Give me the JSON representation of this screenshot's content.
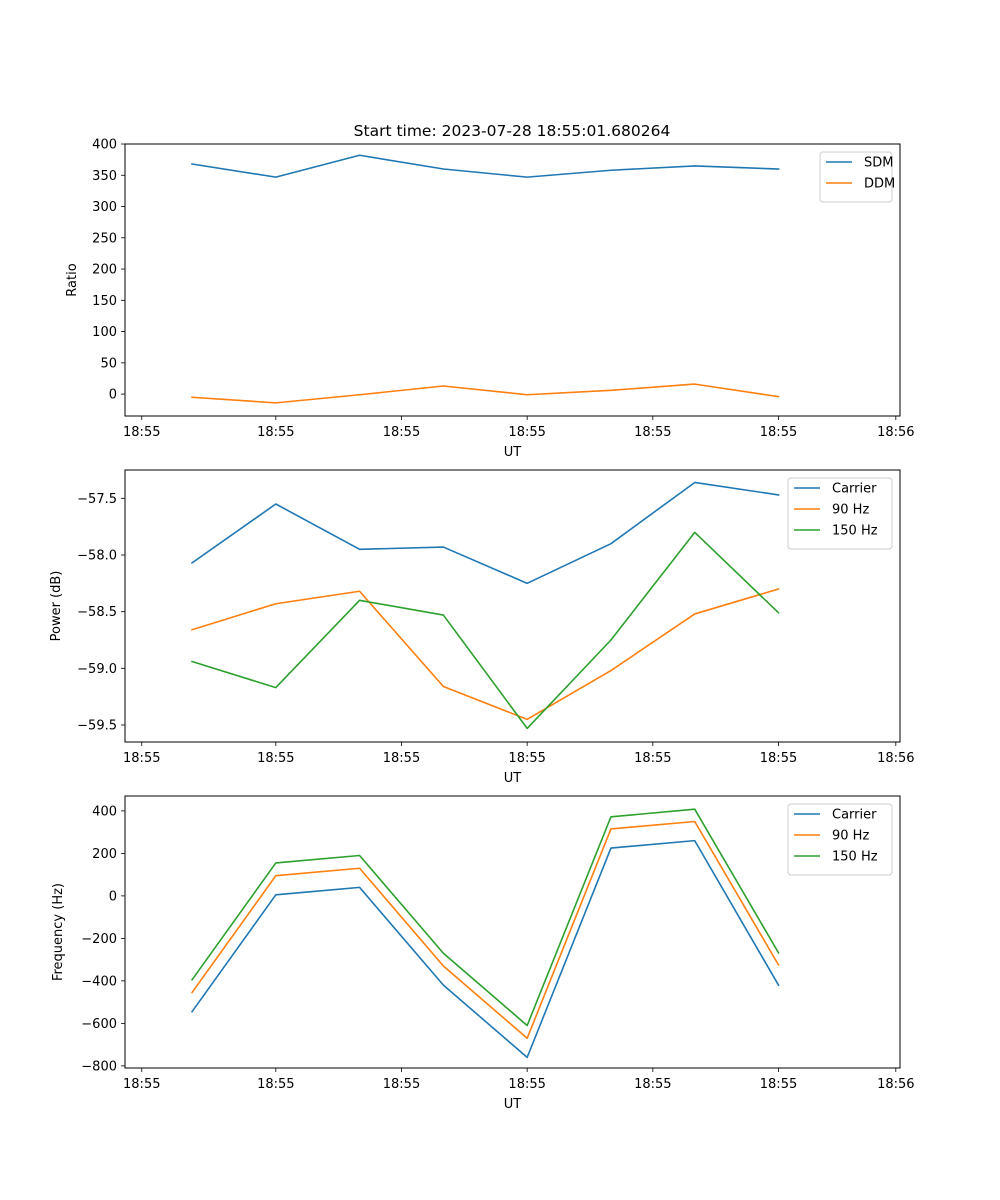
{
  "figure_title": "Start time: 2023-07-28 18:55:01.680264",
  "colors": {
    "blue": "#1f77b4",
    "orange": "#ff7f0e",
    "green": "#2ca02c"
  },
  "chart_data": [
    {
      "type": "line",
      "title": "Start time: 2023-07-28 18:55:01.680264",
      "xlabel": "UT",
      "ylabel": "Ratio",
      "x": [
        1,
        2,
        3,
        4,
        5,
        6,
        7,
        8
      ],
      "xlim": [
        0.2,
        9.45
      ],
      "x_ticks": [
        0.4,
        2.0,
        3.5,
        5.0,
        6.5,
        8.0,
        9.4
      ],
      "x_tick_labels": [
        "18:55",
        "18:55",
        "18:55",
        "18:55",
        "18:55",
        "18:55",
        "18:56"
      ],
      "ylim": [
        -35,
        400
      ],
      "y_ticks": [
        0,
        50,
        100,
        150,
        200,
        250,
        300,
        350,
        400
      ],
      "y_tick_labels": [
        "0",
        "50",
        "100",
        "150",
        "200",
        "250",
        "300",
        "350",
        "400"
      ],
      "legend": "upper right",
      "series": [
        {
          "name": "SDM",
          "color": "#1f77b4",
          "values": [
            368,
            347,
            382,
            360,
            347,
            358,
            365,
            360
          ]
        },
        {
          "name": "DDM",
          "color": "#ff7f0e",
          "values": [
            -5,
            -14,
            -1,
            13,
            -1,
            6,
            16,
            -4
          ]
        }
      ]
    },
    {
      "type": "line",
      "xlabel": "UT",
      "ylabel": "Power (dB)",
      "x": [
        1,
        2,
        3,
        4,
        5,
        6,
        7,
        8
      ],
      "xlim": [
        0.2,
        9.45
      ],
      "x_ticks": [
        0.4,
        2.0,
        3.5,
        5.0,
        6.5,
        8.0,
        9.4
      ],
      "x_tick_labels": [
        "18:55",
        "18:55",
        "18:55",
        "18:55",
        "18:55",
        "18:55",
        "18:56"
      ],
      "ylim": [
        -59.65,
        -57.25
      ],
      "y_ticks": [
        -57.5,
        -58.0,
        -58.5,
        -59.0,
        -59.5
      ],
      "y_tick_labels": [
        "−57.5",
        "−58.0",
        "−58.5",
        "−59.0",
        "−59.5"
      ],
      "legend": "upper right",
      "series": [
        {
          "name": "Carrier",
          "color": "#1f77b4",
          "values": [
            -58.07,
            -57.55,
            -57.95,
            -57.93,
            -58.25,
            -57.9,
            -57.36,
            -57.47
          ]
        },
        {
          "name": "90 Hz",
          "color": "#ff7f0e",
          "values": [
            -58.66,
            -58.43,
            -58.32,
            -59.16,
            -59.45,
            -59.02,
            -58.52,
            -58.3
          ]
        },
        {
          "name": "150 Hz",
          "color": "#2ca02c",
          "values": [
            -58.94,
            -59.17,
            -58.4,
            -58.53,
            -59.53,
            -58.75,
            -57.8,
            -58.51
          ]
        }
      ]
    },
    {
      "type": "line",
      "xlabel": "UT",
      "ylabel": "Frequency (Hz)",
      "x": [
        1,
        2,
        3,
        4,
        5,
        6,
        7,
        8
      ],
      "xlim": [
        0.2,
        9.45
      ],
      "x_ticks": [
        0.4,
        2.0,
        3.5,
        5.0,
        6.5,
        8.0,
        9.4
      ],
      "x_tick_labels": [
        "18:55",
        "18:55",
        "18:55",
        "18:55",
        "18:55",
        "18:55",
        "18:56"
      ],
      "ylim": [
        -810,
        470
      ],
      "y_ticks": [
        400,
        200,
        0,
        -200,
        -400,
        -600,
        -800
      ],
      "y_tick_labels": [
        "400",
        "200",
        "0",
        "−200",
        "−400",
        "−600",
        "−800"
      ],
      "legend": "upper right",
      "series": [
        {
          "name": "Carrier",
          "color": "#1f77b4",
          "values": [
            -545,
            5,
            40,
            -420,
            -760,
            225,
            260,
            -420
          ]
        },
        {
          "name": "90 Hz",
          "color": "#ff7f0e",
          "values": [
            -455,
            95,
            130,
            -330,
            -670,
            315,
            350,
            -325
          ]
        },
        {
          "name": "150 Hz",
          "color": "#2ca02c",
          "values": [
            -395,
            155,
            190,
            -270,
            -610,
            372,
            408,
            -268
          ]
        }
      ]
    }
  ]
}
